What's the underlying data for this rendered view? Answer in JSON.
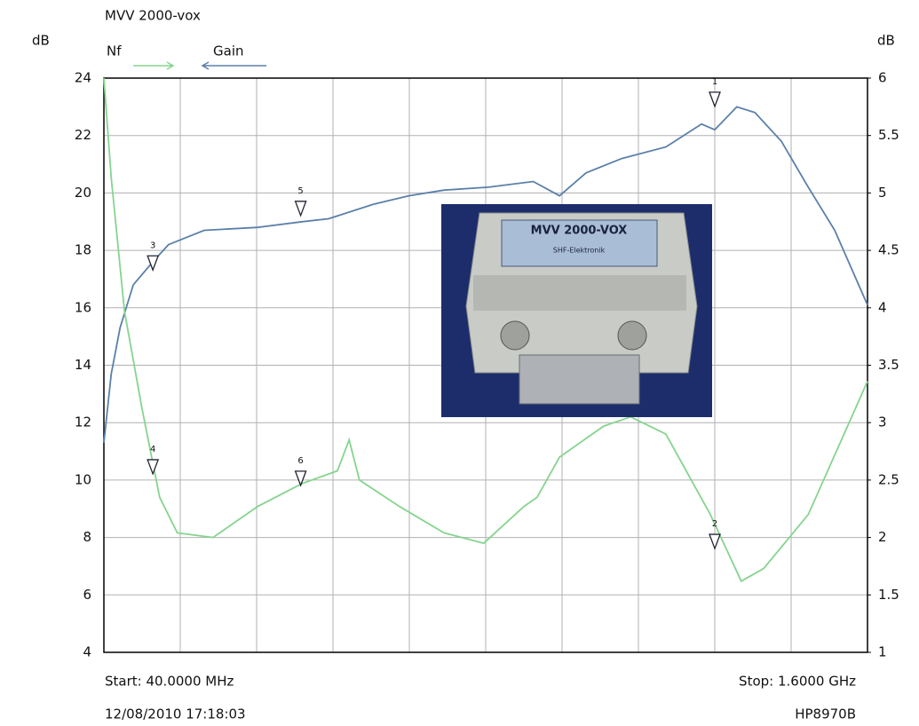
{
  "chart_data": {
    "type": "line",
    "title": "MVV 2000-vox",
    "y_label": "dB",
    "y2_label": "dB",
    "start_label": "Start: 40.0000 MHz",
    "stop_label": "Stop: 1.6000 GHz",
    "timestamp": "12/08/2010 17:18:03",
    "instrument": "HP8970B",
    "xlim": [
      40,
      1600
    ],
    "ylim": [
      4,
      24
    ],
    "yticks": [
      4,
      6,
      8,
      10,
      12,
      14,
      16,
      18,
      20,
      22,
      24
    ],
    "y2lim": [
      1,
      6
    ],
    "y2ticks": [
      1,
      1.5,
      2,
      2.5,
      3,
      3.5,
      4,
      4.5,
      5,
      5.5,
      6
    ],
    "grid": true,
    "series": [
      {
        "name": "Gain",
        "color": "#5b80aa",
        "x": [
          40,
          55,
          73,
          100,
          140,
          172,
          245,
          354,
          445,
          499,
          590,
          663,
          735,
          826,
          917,
          971,
          1025,
          1098,
          1188,
          1261,
          1288,
          1333,
          1370,
          1424,
          1479,
          1533,
          1600
        ],
        "values": [
          11.3,
          13.7,
          15.3,
          16.8,
          17.6,
          18.2,
          18.7,
          18.8,
          19.0,
          19.1,
          19.6,
          19.9,
          20.1,
          20.2,
          20.4,
          19.9,
          20.7,
          21.2,
          21.6,
          22.4,
          22.2,
          23.0,
          22.8,
          21.8,
          20.2,
          18.7,
          16.1
        ]
      },
      {
        "name": "Nf",
        "color": "#86d48f",
        "axis": "y2",
        "x": [
          40,
          55,
          82,
          118,
          154,
          190,
          263,
          354,
          445,
          517,
          541,
          562,
          644,
          735,
          816,
          898,
          925,
          971,
          1061,
          1116,
          1188,
          1279,
          1342,
          1388,
          1479,
          1600
        ],
        "values": [
          6.0,
          5.13,
          3.97,
          3.12,
          2.35,
          2.04,
          2.0,
          2.27,
          2.47,
          2.58,
          2.85,
          2.5,
          2.27,
          2.04,
          1.95,
          2.27,
          2.35,
          2.7,
          2.97,
          3.05,
          2.9,
          2.2,
          1.62,
          1.73,
          2.2,
          3.36
        ]
      }
    ],
    "markers": [
      {
        "label": "1",
        "x": 1288,
        "value": 23.2
      },
      {
        "label": "2",
        "x": 1288,
        "value": 1.95,
        "axis": "y2"
      },
      {
        "label": "3",
        "x": 140,
        "value": 17.5
      },
      {
        "label": "4",
        "x": 140,
        "value": 2.6,
        "axis": "y2"
      },
      {
        "label": "5",
        "x": 442,
        "value": 19.4
      },
      {
        "label": "6",
        "x": 442,
        "value": 2.5,
        "axis": "y2"
      }
    ],
    "inset_texts": [
      "MVV 2000-VOX",
      "SHF-Elektronik"
    ]
  }
}
